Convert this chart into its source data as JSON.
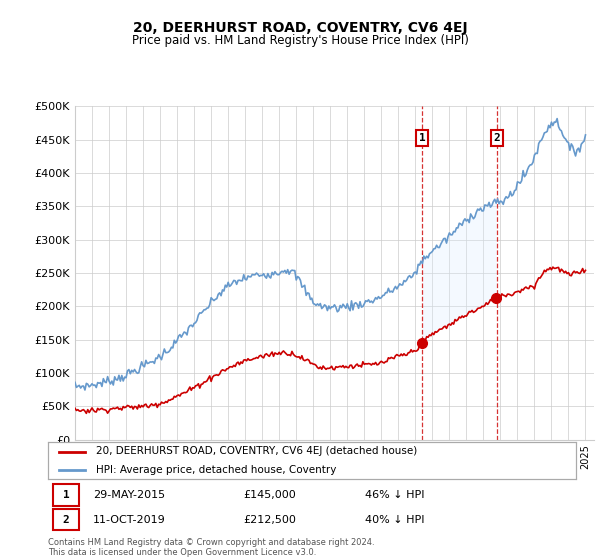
{
  "title": "20, DEERHURST ROAD, COVENTRY, CV6 4EJ",
  "subtitle": "Price paid vs. HM Land Registry's House Price Index (HPI)",
  "ylim": [
    0,
    500000
  ],
  "yticks": [
    0,
    50000,
    100000,
    150000,
    200000,
    250000,
    300000,
    350000,
    400000,
    450000,
    500000
  ],
  "ytick_labels": [
    "£0",
    "£50K",
    "£100K",
    "£150K",
    "£200K",
    "£250K",
    "£300K",
    "£350K",
    "£400K",
    "£450K",
    "£500K"
  ],
  "xlim_start": 1995.0,
  "xlim_end": 2025.5,
  "sale1_year": 2015.41,
  "sale1_price": 145000,
  "sale1_label": "1",
  "sale2_year": 2019.78,
  "sale2_price": 212500,
  "sale2_label": "2",
  "red_color": "#cc0000",
  "blue_color": "#6699cc",
  "blue_fill_color": "#ddeeff",
  "box_color": "#cc0000",
  "legend_label_red": "20, DEERHURST ROAD, COVENTRY, CV6 4EJ (detached house)",
  "legend_label_blue": "HPI: Average price, detached house, Coventry",
  "footer_text": "Contains HM Land Registry data © Crown copyright and database right 2024.\nThis data is licensed under the Open Government Licence v3.0.",
  "sale1_date": "29-MAY-2015",
  "sale1_amount": "£145,000",
  "sale1_pct": "46% ↓ HPI",
  "sale2_date": "11-OCT-2019",
  "sale2_amount": "£212,500",
  "sale2_pct": "40% ↓ HPI"
}
